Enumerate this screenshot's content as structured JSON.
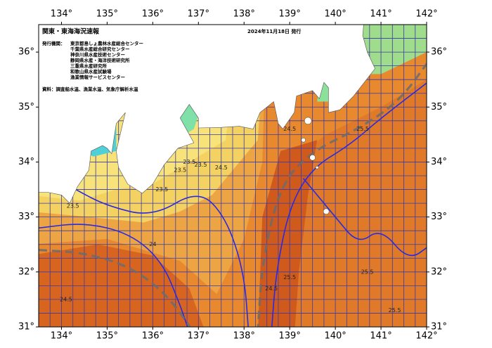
{
  "map": {
    "title": "関東・東海海況速報",
    "date": "2024年11月18日 発行",
    "agencies_label": "発行機関：",
    "agencies": [
      "東京都島しょ農林水産総合センター",
      "千葉県水産総合研究センター",
      "神奈川県水産技術センター",
      "静岡県水産・海洋技術研究所",
      "三重県水産研究所",
      "和歌山県水産試験場",
      "漁業情報サービスセンター"
    ],
    "source": "資料：調査船水温、漁業水温、気象庁解析水温",
    "lonlim": [
      133.5,
      142
    ],
    "latlim": [
      31,
      36.5
    ],
    "lon_ticks": [
      {
        "value": 134,
        "label": "134°"
      },
      {
        "value": 135,
        "label": "135°"
      },
      {
        "value": 136,
        "label": "136°"
      },
      {
        "value": 137,
        "label": "137°"
      },
      {
        "value": 138,
        "label": "138°"
      },
      {
        "value": 139,
        "label": "139°"
      },
      {
        "value": 140,
        "label": "140°"
      },
      {
        "value": 141,
        "label": "141°"
      },
      {
        "value": 142,
        "label": "142°"
      }
    ],
    "lat_ticks": [
      {
        "value": 31,
        "label": "31°"
      },
      {
        "value": 32,
        "label": "32°"
      },
      {
        "value": 33,
        "label": "33°"
      },
      {
        "value": 34,
        "label": "34°"
      },
      {
        "value": 35,
        "label": "35°"
      },
      {
        "value": 36,
        "label": "36°"
      }
    ],
    "contour_labels": [
      "23.5",
      "23.5",
      "23.5",
      "23.5",
      "23.5",
      "24",
      "24.5",
      "24.5",
      "25.5",
      "25.5",
      "25.5",
      "24.5",
      "24.5",
      "25.5"
    ]
  }
}
